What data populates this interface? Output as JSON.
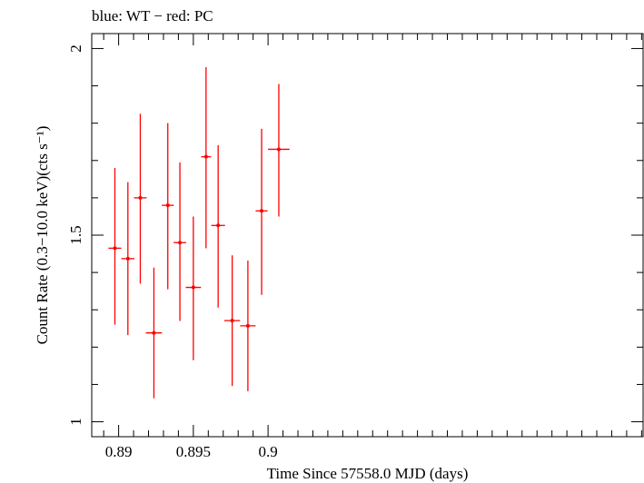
{
  "header_text": "blue: WT − red: PC",
  "chart_data": {
    "type": "scatter",
    "title": "",
    "xlabel": "Time Since 57558.0 MJD (days)",
    "ylabel": "Count Rate (0.3−10.0 keV)(cts s⁻¹)",
    "xlim": [
      0.8882,
      0.9251
    ],
    "ylim": [
      0.96,
      2.04
    ],
    "x_ticks": [
      0.89,
      0.895,
      0.9
    ],
    "x_tick_labels": [
      "0.89",
      "0.895",
      "0.9"
    ],
    "y_ticks": [
      1,
      1.5,
      2
    ],
    "y_tick_labels": [
      "1",
      "1.5",
      "2"
    ],
    "grid": false,
    "series": [
      {
        "name": "PC",
        "color": "#ff0000",
        "points": [
          {
            "x": 0.88975,
            "xerr": 0.00043,
            "y": 1.465,
            "yerr_low": 0.205,
            "yerr_high": 0.215
          },
          {
            "x": 0.89062,
            "xerr": 0.00044,
            "y": 1.437,
            "yerr_low": 0.205,
            "yerr_high": 0.205
          },
          {
            "x": 0.89145,
            "xerr": 0.00042,
            "y": 1.6,
            "yerr_low": 0.23,
            "yerr_high": 0.225
          },
          {
            "x": 0.89236,
            "xerr": 0.00054,
            "y": 1.238,
            "yerr_low": 0.175,
            "yerr_high": 0.175
          },
          {
            "x": 0.89329,
            "xerr": 0.0004,
            "y": 1.58,
            "yerr_low": 0.225,
            "yerr_high": 0.22
          },
          {
            "x": 0.8941,
            "xerr": 0.00042,
            "y": 1.48,
            "yerr_low": 0.21,
            "yerr_high": 0.215
          },
          {
            "x": 0.895,
            "xerr": 0.00051,
            "y": 1.36,
            "yerr_low": 0.195,
            "yerr_high": 0.19
          },
          {
            "x": 0.89585,
            "xerr": 0.00033,
            "y": 1.71,
            "yerr_low": 0.245,
            "yerr_high": 0.24
          },
          {
            "x": 0.89666,
            "xerr": 0.00046,
            "y": 1.526,
            "yerr_low": 0.22,
            "yerr_high": 0.215
          },
          {
            "x": 0.8976,
            "xerr": 0.00053,
            "y": 1.271,
            "yerr_low": 0.175,
            "yerr_high": 0.175
          },
          {
            "x": 0.89865,
            "xerr": 0.00052,
            "y": 1.257,
            "yerr_low": 0.175,
            "yerr_high": 0.175
          },
          {
            "x": 0.89957,
            "xerr": 0.0004,
            "y": 1.565,
            "yerr_low": 0.225,
            "yerr_high": 0.22
          },
          {
            "x": 0.90072,
            "xerr": 0.00072,
            "y": 1.73,
            "yerr_low": 0.18,
            "yerr_high": 0.175
          }
        ]
      }
    ]
  }
}
